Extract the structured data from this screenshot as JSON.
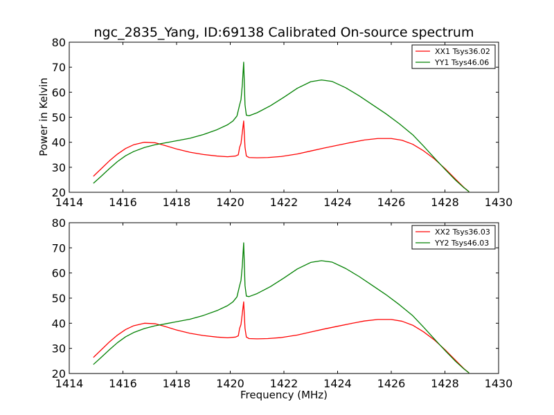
{
  "chart_data": [
    {
      "type": "line",
      "title": "ngc_2835_Yang, ID:69138 Calibrated On-source spectrum",
      "xlabel": "",
      "ylabel": "Power in Kelvin",
      "xlim": [
        1414,
        1430
      ],
      "ylim": [
        20,
        80
      ],
      "xticks": [
        1414,
        1416,
        1418,
        1420,
        1422,
        1424,
        1426,
        1428,
        1430
      ],
      "yticks": [
        20,
        30,
        40,
        50,
        60,
        70,
        80
      ],
      "legend": "top-right",
      "series": [
        {
          "name": "XX1 Tsys36.02",
          "color": "#ff0000",
          "x": [
            1414.9,
            1415.2,
            1415.5,
            1415.8,
            1416.1,
            1416.4,
            1416.8,
            1417.2,
            1417.6,
            1418.0,
            1418.5,
            1419.0,
            1419.5,
            1419.9,
            1420.2,
            1420.3,
            1420.35,
            1420.4,
            1420.45,
            1420.5,
            1420.55,
            1420.6,
            1420.7,
            1421.0,
            1421.4,
            1421.9,
            1422.5,
            1423.0,
            1423.5,
            1424.0,
            1424.5,
            1425.0,
            1425.5,
            1426.0,
            1426.4,
            1426.8,
            1427.2,
            1427.6,
            1428.0,
            1428.4,
            1428.7,
            1428.9
          ],
          "y": [
            26.4,
            29.5,
            32.6,
            35.3,
            37.5,
            39.0,
            40.0,
            39.8,
            38.6,
            37.3,
            36.0,
            35.1,
            34.5,
            34.2,
            34.5,
            35.0,
            38.0,
            39.5,
            44.0,
            48.5,
            38.0,
            34.5,
            33.9,
            33.8,
            33.9,
            34.3,
            35.3,
            36.5,
            37.7,
            38.8,
            39.9,
            40.9,
            41.5,
            41.5,
            40.8,
            39.2,
            36.6,
            33.4,
            29.5,
            25.2,
            22.0,
            20.2
          ]
        },
        {
          "name": "YY1 Tsys46.06",
          "color": "#008000",
          "x": [
            1414.9,
            1415.2,
            1415.5,
            1415.8,
            1416.1,
            1416.4,
            1416.8,
            1417.2,
            1417.6,
            1418.0,
            1418.5,
            1419.0,
            1419.5,
            1419.9,
            1420.1,
            1420.25,
            1420.35,
            1420.4,
            1420.45,
            1420.5,
            1420.55,
            1420.6,
            1420.7,
            1421.0,
            1421.5,
            1422.0,
            1422.5,
            1423.0,
            1423.4,
            1423.8,
            1424.3,
            1424.8,
            1425.3,
            1425.8,
            1426.3,
            1426.8,
            1427.2,
            1427.6,
            1428.0,
            1428.4,
            1428.7,
            1428.9
          ],
          "y": [
            23.6,
            26.5,
            29.5,
            32.3,
            34.6,
            36.3,
            37.9,
            39.0,
            39.8,
            40.6,
            41.6,
            43.1,
            45.0,
            47.0,
            48.5,
            50.5,
            55.0,
            57.0,
            63.0,
            72.0,
            55.0,
            50.8,
            50.6,
            51.8,
            54.6,
            58.0,
            61.6,
            64.2,
            64.9,
            64.3,
            61.8,
            58.6,
            55.0,
            51.4,
            47.4,
            43.0,
            38.5,
            33.8,
            29.2,
            24.8,
            21.9,
            20.2
          ]
        }
      ]
    },
    {
      "type": "line",
      "title": "",
      "xlabel": "Frequency (MHz)",
      "ylabel": "",
      "xlim": [
        1414,
        1430
      ],
      "ylim": [
        20,
        80
      ],
      "xticks": [
        1414,
        1416,
        1418,
        1420,
        1422,
        1424,
        1426,
        1428,
        1430
      ],
      "yticks": [
        20,
        30,
        40,
        50,
        60,
        70,
        80
      ],
      "legend": "top-right",
      "series": [
        {
          "name": "XX2 Tsys36.03",
          "color": "#ff0000",
          "x": [
            1414.9,
            1415.2,
            1415.5,
            1415.8,
            1416.1,
            1416.4,
            1416.8,
            1417.2,
            1417.6,
            1418.0,
            1418.5,
            1419.0,
            1419.5,
            1419.9,
            1420.2,
            1420.3,
            1420.35,
            1420.4,
            1420.45,
            1420.5,
            1420.55,
            1420.6,
            1420.7,
            1421.0,
            1421.4,
            1421.9,
            1422.5,
            1423.0,
            1423.5,
            1424.0,
            1424.5,
            1425.0,
            1425.5,
            1426.0,
            1426.4,
            1426.8,
            1427.2,
            1427.6,
            1428.0,
            1428.4,
            1428.7,
            1428.9
          ],
          "y": [
            26.4,
            29.5,
            32.6,
            35.3,
            37.5,
            39.0,
            40.0,
            39.8,
            38.6,
            37.3,
            36.0,
            35.1,
            34.5,
            34.2,
            34.5,
            35.0,
            38.0,
            39.5,
            44.0,
            48.5,
            38.0,
            34.5,
            33.9,
            33.8,
            33.9,
            34.3,
            35.3,
            36.5,
            37.7,
            38.8,
            39.9,
            40.9,
            41.5,
            41.5,
            40.8,
            39.2,
            36.6,
            33.4,
            29.5,
            25.2,
            22.0,
            20.2
          ]
        },
        {
          "name": "YY2 Tsys46.03",
          "color": "#008000",
          "x": [
            1414.9,
            1415.2,
            1415.5,
            1415.8,
            1416.1,
            1416.4,
            1416.8,
            1417.2,
            1417.6,
            1418.0,
            1418.5,
            1419.0,
            1419.5,
            1419.9,
            1420.1,
            1420.25,
            1420.35,
            1420.4,
            1420.45,
            1420.5,
            1420.55,
            1420.6,
            1420.7,
            1421.0,
            1421.5,
            1422.0,
            1422.5,
            1423.0,
            1423.4,
            1423.8,
            1424.3,
            1424.8,
            1425.3,
            1425.8,
            1426.3,
            1426.8,
            1427.2,
            1427.6,
            1428.0,
            1428.4,
            1428.7,
            1428.9
          ],
          "y": [
            23.6,
            26.5,
            29.5,
            32.3,
            34.6,
            36.3,
            37.9,
            39.0,
            39.8,
            40.6,
            41.6,
            43.1,
            45.0,
            47.0,
            48.5,
            50.5,
            55.0,
            57.0,
            63.0,
            72.0,
            55.0,
            50.8,
            50.6,
            51.8,
            54.6,
            58.0,
            61.6,
            64.2,
            64.9,
            64.3,
            61.8,
            58.6,
            55.0,
            51.4,
            47.4,
            43.0,
            38.5,
            33.8,
            29.2,
            24.8,
            21.9,
            20.2
          ]
        }
      ]
    }
  ]
}
